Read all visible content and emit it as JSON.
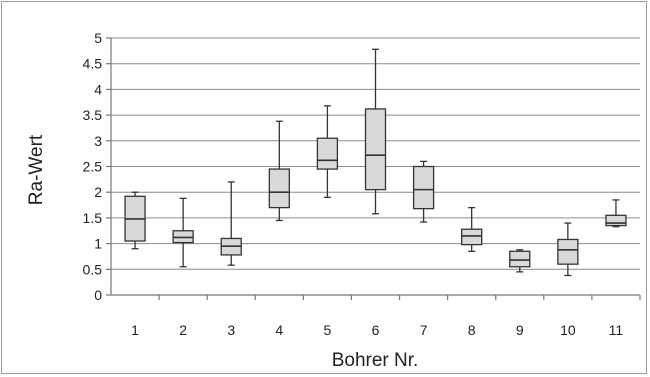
{
  "chart_data": {
    "type": "box",
    "xlabel": "Bohrer Nr.",
    "ylabel": "Ra-Wert",
    "ylim": [
      0,
      5
    ],
    "yticks": [
      "0",
      "0.5",
      "1",
      "1.5",
      "2",
      "2.5",
      "3",
      "3.5",
      "4",
      "4.5",
      "5"
    ],
    "grid": true,
    "categories": [
      "1",
      "2",
      "3",
      "4",
      "5",
      "6",
      "7",
      "8",
      "9",
      "10",
      "11"
    ],
    "boxes": [
      {
        "min": 0.9,
        "q1": 1.05,
        "median": 1.48,
        "q3": 1.92,
        "max": 2.0
      },
      {
        "min": 0.55,
        "q1": 1.02,
        "median": 1.12,
        "q3": 1.25,
        "max": 1.88
      },
      {
        "min": 0.58,
        "q1": 0.78,
        "median": 0.95,
        "q3": 1.1,
        "max": 2.2
      },
      {
        "min": 1.45,
        "q1": 1.7,
        "median": 2.0,
        "q3": 2.45,
        "max": 3.38
      },
      {
        "min": 1.9,
        "q1": 2.45,
        "median": 2.62,
        "q3": 3.05,
        "max": 3.68
      },
      {
        "min": 1.58,
        "q1": 2.05,
        "median": 2.72,
        "q3": 3.62,
        "max": 4.78
      },
      {
        "min": 1.42,
        "q1": 1.68,
        "median": 2.05,
        "q3": 2.5,
        "max": 2.6
      },
      {
        "min": 0.85,
        "q1": 0.98,
        "median": 1.15,
        "q3": 1.28,
        "max": 1.7
      },
      {
        "min": 0.45,
        "q1": 0.55,
        "median": 0.68,
        "q3": 0.85,
        "max": 0.88
      },
      {
        "min": 0.38,
        "q1": 0.6,
        "median": 0.88,
        "q3": 1.08,
        "max": 1.4
      },
      {
        "min": 1.33,
        "q1": 1.35,
        "median": 1.4,
        "q3": 1.55,
        "max": 1.85
      }
    ]
  }
}
